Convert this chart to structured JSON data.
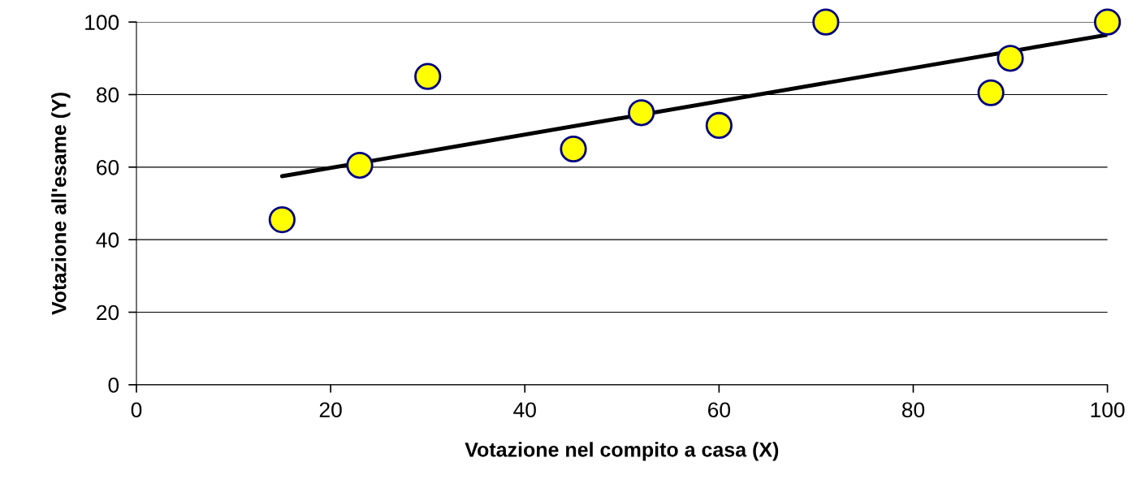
{
  "chart_data": {
    "type": "scatter",
    "xlabel": "Votazione nel compito a casa (X)",
    "ylabel": "Votazione all'esame (Y)",
    "xlim": [
      0,
      100
    ],
    "xticks": [
      0,
      20,
      40,
      60,
      80,
      100
    ],
    "ylim": [
      0,
      100
    ],
    "yticks": [
      0,
      20,
      40,
      60,
      80,
      100
    ],
    "grid": "y",
    "legend": false,
    "series": [
      {
        "marker": "circle",
        "color": "#ffff00",
        "x": [
          15,
          23,
          30,
          45,
          52,
          60,
          71,
          88,
          90,
          100
        ],
        "values": [
          45.5,
          60.5,
          85,
          65,
          75,
          71.5,
          100,
          80.5,
          90,
          100
        ]
      },
      {
        "type": "line",
        "color": "#000000",
        "x": [
          15,
          100
        ],
        "values": [
          57.5,
          96.5
        ],
        "line_style": "solid"
      }
    ]
  }
}
